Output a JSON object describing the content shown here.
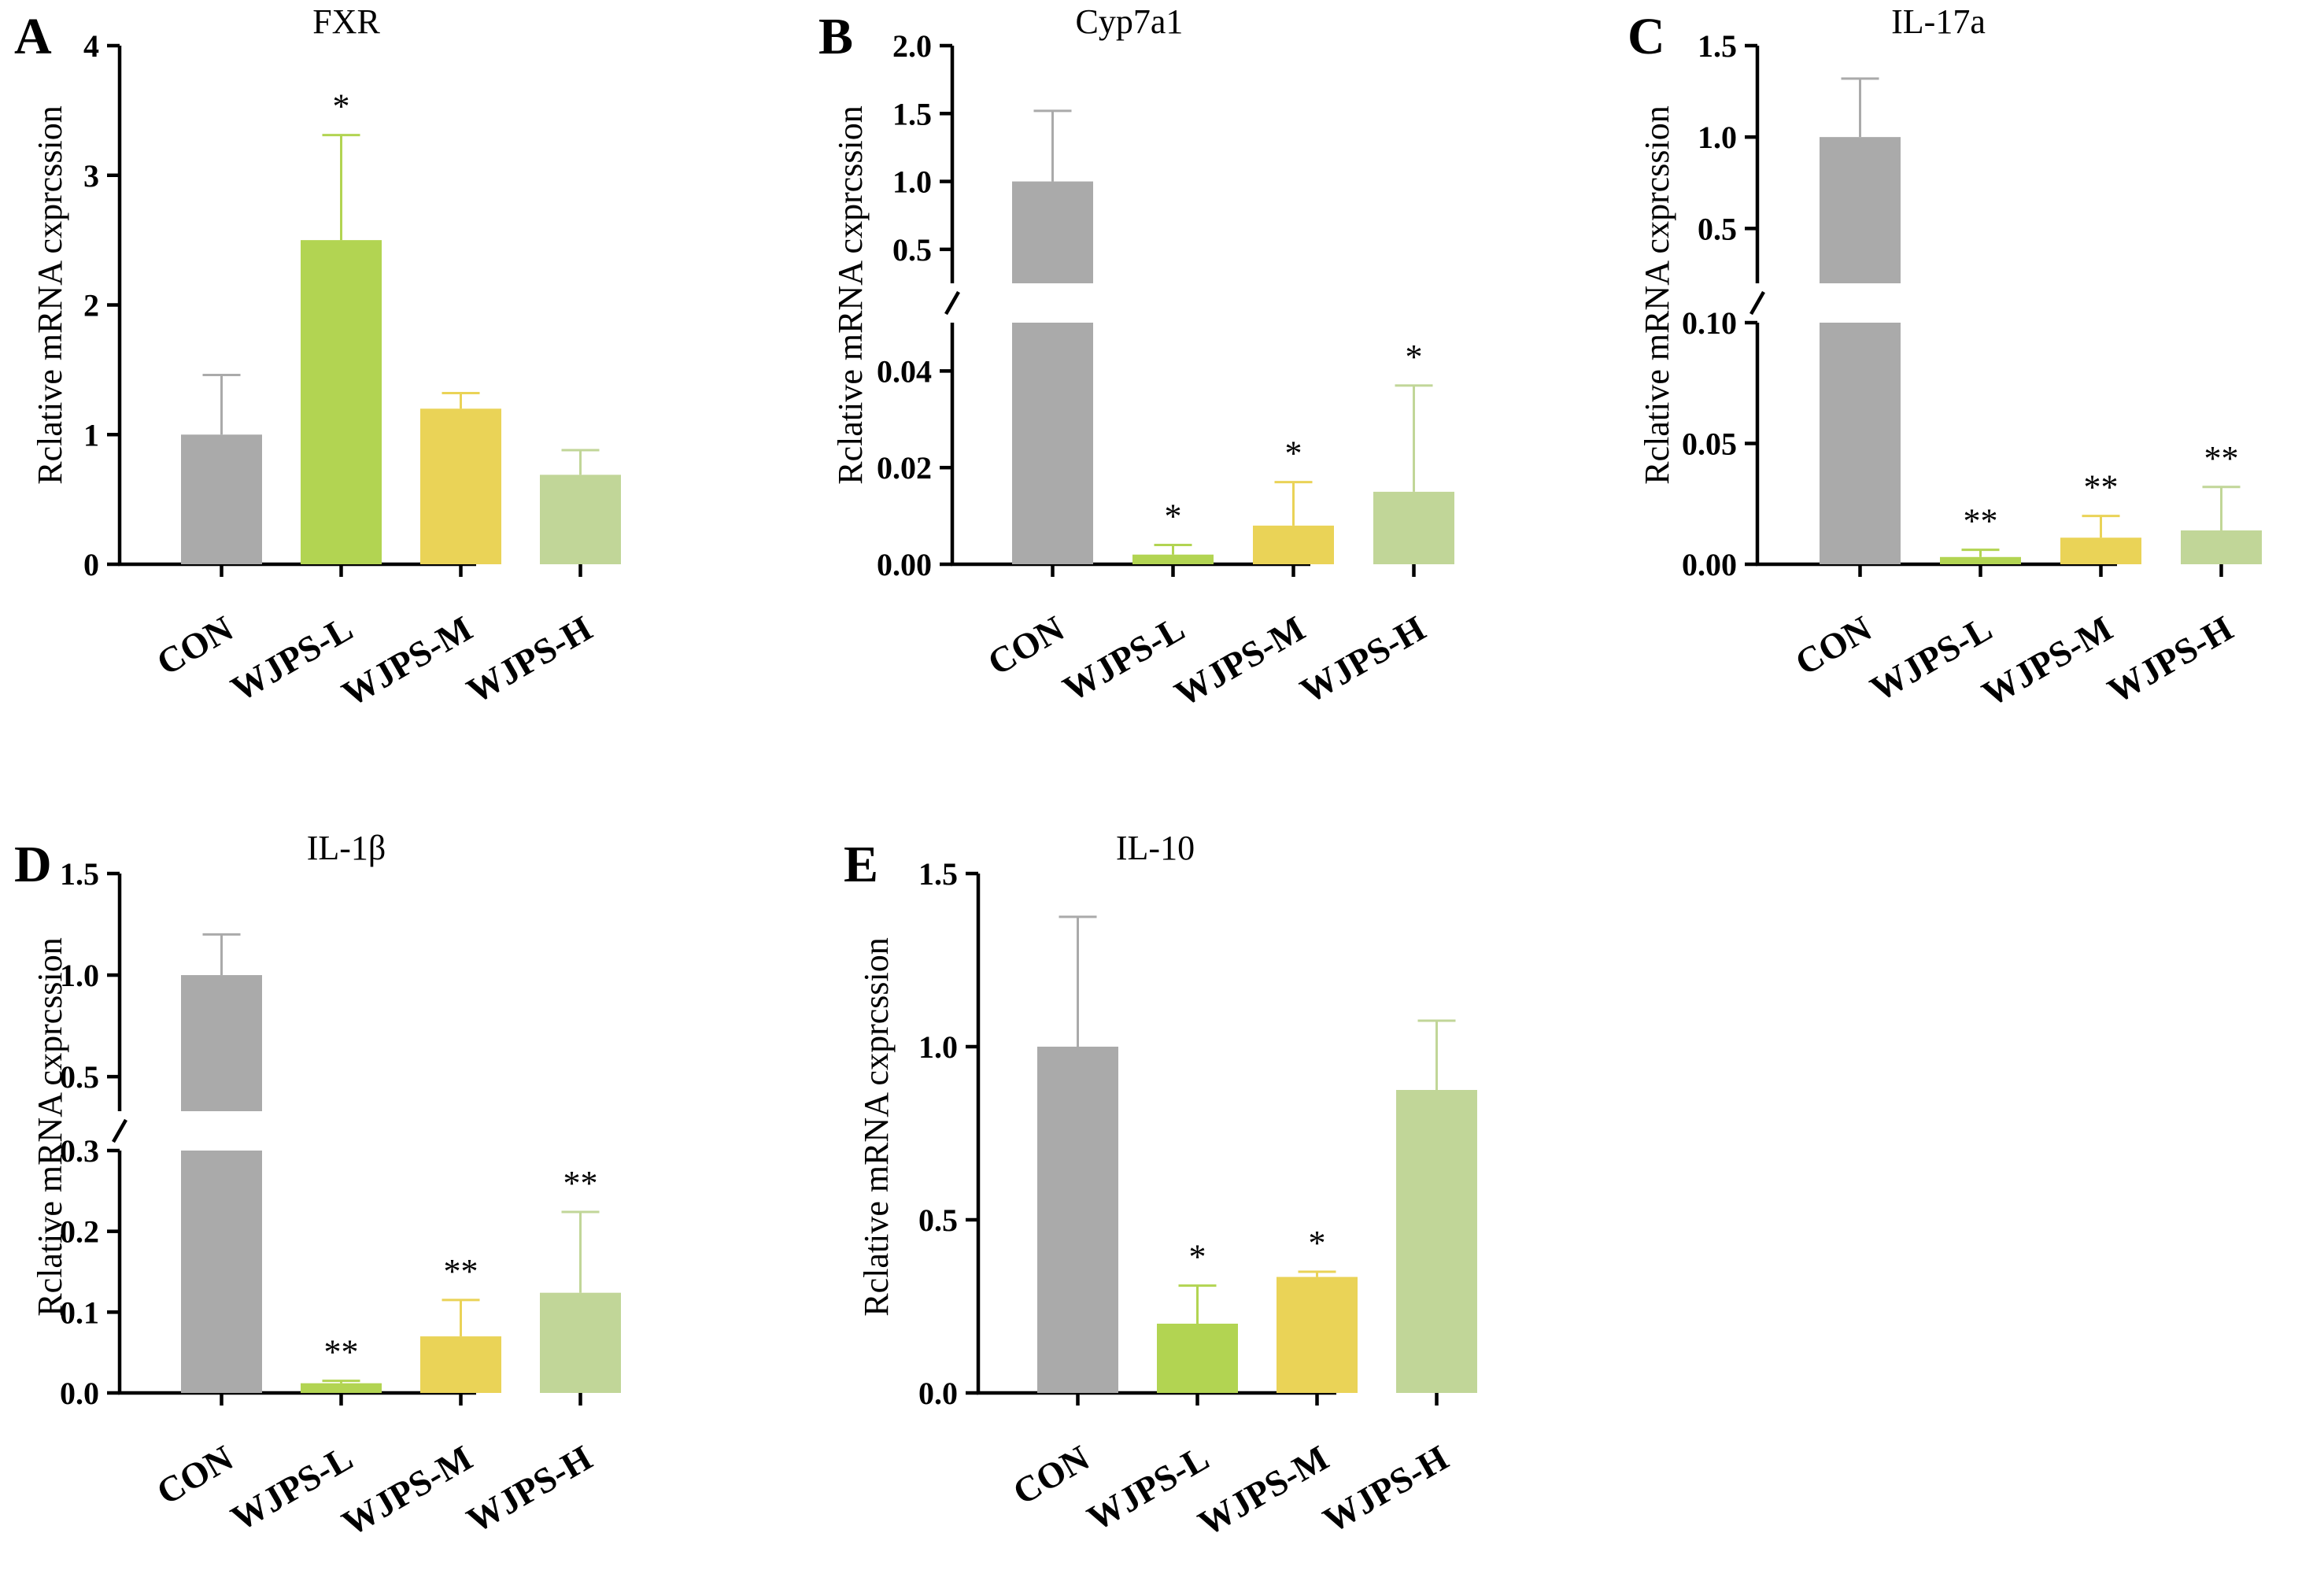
{
  "figure": {
    "colors": {
      "CON": "#aaaaaa",
      "WJPS-L": "#b2d452",
      "WJPS-M": "#ead357",
      "WJPS-H": "#c1d698",
      "axis": "#000000"
    }
  },
  "chart_data": [
    {
      "panel": "A",
      "title": "FXR",
      "type": "bar",
      "ylabel": "Rclative mRNA cxprcssion",
      "categories": [
        "CON",
        "WJPS-L",
        "WJPS-M",
        "WJPS-H"
      ],
      "values": [
        1.0,
        2.5,
        1.2,
        0.69
      ],
      "errors": [
        0.46,
        0.81,
        0.12,
        0.19
      ],
      "significance": [
        "",
        "*",
        "",
        ""
      ],
      "ylim": [
        0,
        4
      ],
      "yticks": [
        "0",
        "1",
        "2",
        "3",
        "4"
      ]
    },
    {
      "panel": "B",
      "title": "Cyp7a1",
      "type": "bar",
      "ylabel": "Rclative mRNA cxprcssion",
      "categories": [
        "CON",
        "WJPS-L",
        "WJPS-M",
        "WJPS-H"
      ],
      "values": [
        1.0,
        0.002,
        0.008,
        0.015
      ],
      "errors": [
        0.52,
        0.002,
        0.009,
        0.022
      ],
      "significance": [
        "",
        "*",
        "*",
        "*"
      ],
      "axis_break": true,
      "lower_range": [
        0,
        0.05
      ],
      "upper_range": [
        0.25,
        2.0
      ],
      "lower_ticks": [
        "0.00",
        "0.02",
        "0.04"
      ],
      "upper_ticks": [
        "0.5",
        "1.0",
        "1.5",
        "2.0"
      ]
    },
    {
      "panel": "C",
      "title": "IL-17a",
      "type": "bar",
      "ylabel": "Rclative mRNA cxprcssion",
      "categories": [
        "CON",
        "WJPS-L",
        "WJPS-M",
        "WJPS-H"
      ],
      "values": [
        1.0,
        0.003,
        0.011,
        0.014
      ],
      "errors": [
        0.32,
        0.003,
        0.009,
        0.018
      ],
      "significance": [
        "",
        "**",
        "**",
        "**"
      ],
      "axis_break": true,
      "lower_range": [
        0,
        0.1
      ],
      "upper_range": [
        0.2,
        1.5
      ],
      "lower_ticks": [
        "0.00",
        "0.05",
        "0.10"
      ],
      "upper_ticks": [
        "0.5",
        "1.0",
        "1.5"
      ]
    },
    {
      "panel": "D",
      "title": "IL-1β",
      "type": "bar",
      "ylabel": "Rclative mRNA cxprcssion",
      "categories": [
        "CON",
        "WJPS-L",
        "WJPS-M",
        "WJPS-H"
      ],
      "values": [
        1.0,
        0.012,
        0.07,
        0.124
      ],
      "errors": [
        0.2,
        0.003,
        0.045,
        0.1
      ],
      "significance": [
        "",
        "**",
        "**",
        "**"
      ],
      "axis_break": true,
      "lower_range": [
        0,
        0.3
      ],
      "upper_range": [
        0.33,
        1.5
      ],
      "lower_ticks": [
        "0.0",
        "0.1",
        "0.2",
        "0.3"
      ],
      "upper_ticks": [
        "0.5",
        "1.0",
        "1.5"
      ]
    },
    {
      "panel": "E",
      "title": "IL-10",
      "type": "bar",
      "ylabel": "Rclative mRNA cxprcssion",
      "categories": [
        "CON",
        "WJPS-L",
        "WJPS-M",
        "WJPS-H"
      ],
      "values": [
        1.0,
        0.2,
        0.335,
        0.875
      ],
      "errors": [
        0.375,
        0.11,
        0.015,
        0.2
      ],
      "significance": [
        "",
        "*",
        "*",
        ""
      ],
      "ylim": [
        0,
        1.5
      ],
      "yticks": [
        "0.0",
        "0.5",
        "1.0",
        "1.5"
      ]
    }
  ]
}
